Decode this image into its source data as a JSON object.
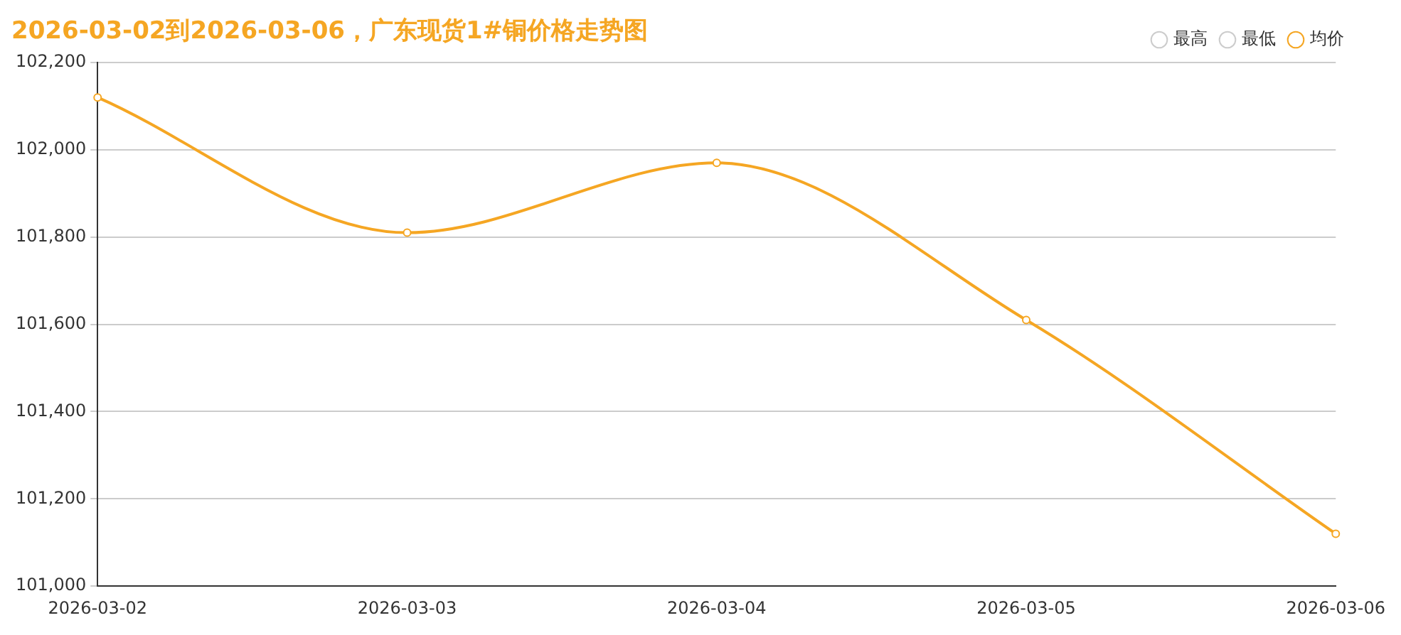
{
  "chart_data": {
    "type": "line",
    "title": "2026-03-02到2026-03-06，广东现货1#铜价格走势图",
    "categories": [
      "2026-03-02",
      "2026-03-03",
      "2026-03-04",
      "2026-03-05",
      "2026-03-06"
    ],
    "series": [
      {
        "name": "最高",
        "color": "#cccccc",
        "values": [
          null,
          null,
          null,
          null,
          null
        ]
      },
      {
        "name": "最低",
        "color": "#cccccc",
        "values": [
          null,
          null,
          null,
          null,
          null
        ]
      },
      {
        "name": "均价",
        "color": "#f5a623",
        "values": [
          102120,
          101810,
          101970,
          101610,
          101120
        ]
      }
    ],
    "ylim": [
      101000,
      102200
    ],
    "yticks": [
      {
        "value": 101000,
        "label": "101,000"
      },
      {
        "value": 101200,
        "label": "101,200"
      },
      {
        "value": 101400,
        "label": "101,400"
      },
      {
        "value": 101600,
        "label": "101,600"
      },
      {
        "value": 101800,
        "label": "101,800"
      },
      {
        "value": 102000,
        "label": "102,000"
      },
      {
        "value": 102200,
        "label": "102,200"
      }
    ],
    "grid": "y",
    "legend": "top right",
    "marker": "circle",
    "line_style": "solid"
  }
}
